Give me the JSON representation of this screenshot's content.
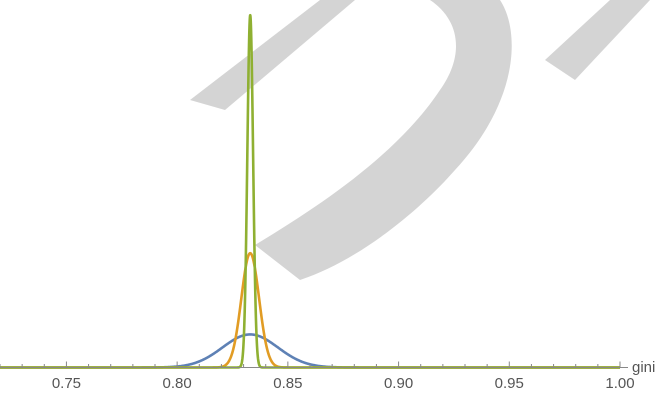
{
  "chart_data": {
    "type": "line",
    "xlabel": "gini",
    "ylabel": "",
    "xlim": [
      0.72,
      1.0
    ],
    "x_ticks": [
      "0.75",
      "0.80",
      "0.85",
      "0.90",
      "0.95",
      "1.00"
    ],
    "x_tick_values": [
      0.75,
      0.8,
      0.85,
      0.9,
      0.95,
      1.0
    ],
    "ylim": [
      0,
      1
    ],
    "series": [
      {
        "mean": 0.833,
        "sd": 0.0125,
        "peak": 0.092,
        "color": "#5e81b5"
      },
      {
        "mean": 0.833,
        "sd": 0.004,
        "peak": 0.318,
        "color": "#e19c24"
      },
      {
        "mean": 0.833,
        "sd": 0.0013,
        "peak": 0.98,
        "color": "#8fb032"
      }
    ]
  },
  "watermark": {
    "text": "D",
    "color": "#d0d0d0"
  }
}
